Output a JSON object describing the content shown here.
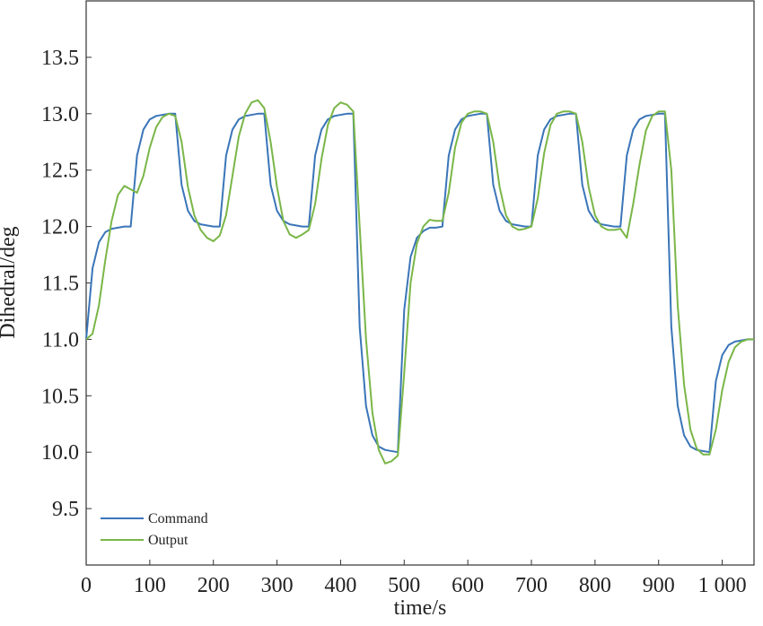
{
  "chart_data": {
    "type": "line",
    "x_label": "time/s",
    "y_label": "Dihedral/deg",
    "x": [
      0,
      10,
      20,
      30,
      40,
      50,
      60,
      70,
      80,
      90,
      100,
      110,
      120,
      130,
      140,
      150,
      160,
      170,
      180,
      190,
      200,
      210,
      220,
      230,
      240,
      250,
      260,
      270,
      280,
      290,
      300,
      310,
      320,
      330,
      340,
      350,
      360,
      370,
      380,
      390,
      400,
      410,
      420,
      430,
      440,
      450,
      460,
      470,
      480,
      490,
      500,
      510,
      520,
      530,
      540,
      550,
      560,
      570,
      580,
      590,
      600,
      610,
      620,
      630,
      640,
      650,
      660,
      670,
      680,
      690,
      700,
      710,
      720,
      730,
      740,
      750,
      760,
      770,
      780,
      790,
      800,
      810,
      820,
      830,
      840,
      850,
      860,
      870,
      880,
      890,
      900,
      910,
      920,
      930,
      940,
      950,
      960,
      970,
      980,
      990,
      1000,
      1010,
      1020,
      1030,
      1040,
      1050
    ],
    "series": [
      {
        "name": "Command",
        "color": "#3a75b8",
        "values": [
          11,
          11.63,
          11.86,
          11.95,
          11.98,
          11.99,
          12,
          12,
          12.63,
          12.86,
          12.95,
          12.98,
          12.99,
          13,
          13,
          12.37,
          12.14,
          12.05,
          12.02,
          12.01,
          12,
          12,
          12.63,
          12.86,
          12.95,
          12.98,
          12.99,
          13,
          13,
          12.37,
          12.14,
          12.05,
          12.02,
          12.01,
          12,
          12,
          12.63,
          12.86,
          12.95,
          12.98,
          12.99,
          13,
          13,
          11.11,
          10.41,
          10.15,
          10.05,
          10.02,
          10.01,
          10,
          11.26,
          11.73,
          11.9,
          11.96,
          11.99,
          11.99,
          12,
          12.63,
          12.86,
          12.95,
          12.98,
          12.99,
          13,
          13,
          12.37,
          12.14,
          12.05,
          12.02,
          12.01,
          12,
          12,
          12.63,
          12.86,
          12.95,
          12.98,
          12.99,
          13,
          13,
          12.37,
          12.14,
          12.05,
          12.02,
          12.01,
          12,
          12,
          12.63,
          12.86,
          12.95,
          12.98,
          12.99,
          13,
          13,
          11.11,
          10.41,
          10.15,
          10.05,
          10.02,
          10.01,
          10,
          10.63,
          10.86,
          10.95,
          10.98,
          10.99,
          11,
          11
        ]
      },
      {
        "name": "Output",
        "color": "#7ab648",
        "values": [
          11,
          11.05,
          11.3,
          11.7,
          12.05,
          12.28,
          12.36,
          12.33,
          12.3,
          12.45,
          12.7,
          12.88,
          12.97,
          13,
          12.98,
          12.75,
          12.35,
          12.1,
          11.97,
          11.9,
          11.87,
          11.92,
          12.1,
          12.45,
          12.8,
          13,
          13.1,
          13.12,
          13.05,
          12.75,
          12.35,
          12.05,
          11.93,
          11.9,
          11.93,
          11.97,
          12.2,
          12.6,
          12.9,
          13.05,
          13.1,
          13.08,
          13.02,
          12,
          11,
          10.35,
          10.02,
          9.9,
          9.92,
          9.97,
          10.7,
          11.5,
          11.85,
          12,
          12.06,
          12.05,
          12.05,
          12.3,
          12.7,
          12.92,
          13,
          13.02,
          13.02,
          13,
          12.75,
          12.35,
          12.1,
          12,
          11.97,
          11.98,
          12,
          12.25,
          12.65,
          12.9,
          13,
          13.02,
          13.02,
          13,
          12.75,
          12.35,
          12.1,
          12,
          11.97,
          11.97,
          11.98,
          11.9,
          12.2,
          12.55,
          12.85,
          12.98,
          13.02,
          13.02,
          12.5,
          11.3,
          10.6,
          10.2,
          10.03,
          9.98,
          9.98,
          10.2,
          10.55,
          10.8,
          10.93,
          10.98,
          11,
          11
        ]
      }
    ],
    "xlim": [
      0,
      1050
    ],
    "ylim": [
      9,
      14
    ],
    "xticks": [
      0,
      100,
      200,
      300,
      400,
      500,
      600,
      700,
      800,
      900,
      {
        "value": 1000,
        "label": "1 000"
      }
    ],
    "yticks": [
      9.5,
      {
        "value": 10,
        "label": "10.0"
      },
      10.5,
      {
        "value": 11,
        "label": "11.0"
      },
      11.5,
      {
        "value": 12,
        "label": "12.0"
      },
      12.5,
      {
        "value": 13,
        "label": "13.0"
      },
      13.5
    ],
    "legend": "lower left"
  }
}
